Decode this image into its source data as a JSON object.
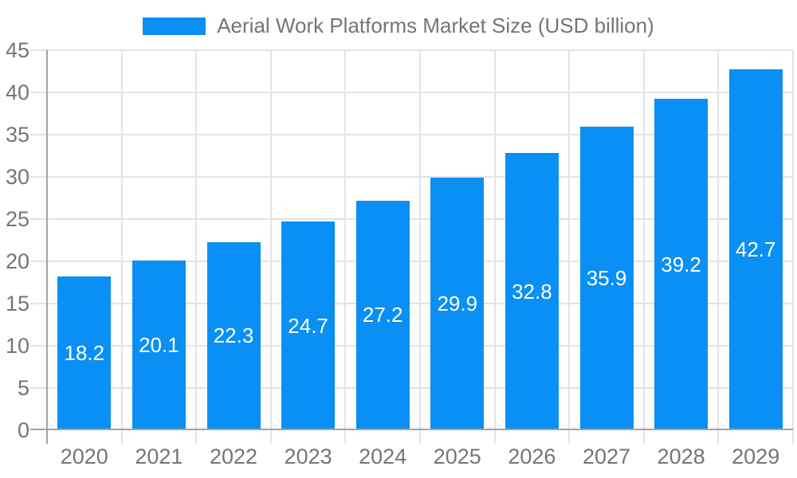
{
  "colors": {
    "bar": "#0A8FF5",
    "grid": "#E3E3E3",
    "axis_line": "#A3A3A3",
    "axis_text": "#757575",
    "value_text": "#FFFFFF",
    "background": "#FFFFFF"
  },
  "chart_data": {
    "type": "bar",
    "title": "Aerial Work Platforms Market Size (USD billion)",
    "legend": [
      {
        "label": "Aerial Work Platforms Market Size (USD billion)",
        "color": "#0A8FF5"
      }
    ],
    "legend_position": "top",
    "grid": true,
    "categories": [
      "2020",
      "2021",
      "2022",
      "2023",
      "2024",
      "2025",
      "2026",
      "2027",
      "2028",
      "2029"
    ],
    "values": [
      18.2,
      20.1,
      22.3,
      24.7,
      27.2,
      29.9,
      32.8,
      35.9,
      39.2,
      42.7
    ],
    "value_labels": [
      "18.2",
      "20.1",
      "22.3",
      "24.7",
      "27.2",
      "29.9",
      "32.8",
      "35.9",
      "39.2",
      "42.7"
    ],
    "xlabel": "",
    "ylabel": "",
    "ylim": [
      0,
      45
    ],
    "ytick_step": 5,
    "ytick_labels": [
      "0",
      "5",
      "10",
      "15",
      "20",
      "25",
      "30",
      "35",
      "40",
      "45"
    ]
  }
}
